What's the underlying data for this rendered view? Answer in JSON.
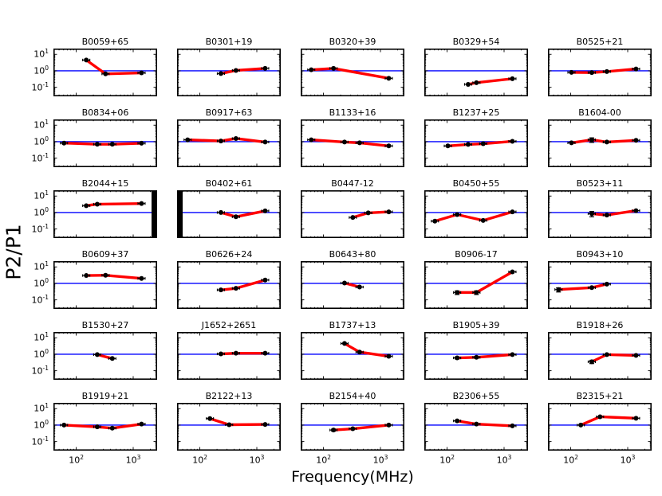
{
  "figure": {
    "title": "",
    "colors": {
      "profile_line": "#ff0000",
      "reference_line": "#0000ff",
      "marker": "#000000",
      "frame": "#000000",
      "background": "#ffffff"
    }
  },
  "chart_data": {
    "type": "line",
    "layout": "6x5 grid of subplots, shared log-log axes",
    "xlabel": "Frequency(MHz)",
    "ylabel": "P2/P1",
    "xscale": "log",
    "yscale": "log",
    "xlim_log10": [
      1.6,
      3.42
    ],
    "ylim_log10": [
      -1.55,
      1.35
    ],
    "xtick_labels": [
      {
        "label": "10^2",
        "value": 100
      },
      {
        "label": "10^3",
        "value": 1000
      }
    ],
    "ytick_labels": [
      {
        "label": "10^1",
        "value": 10
      },
      {
        "label": "10^0",
        "value": 1
      },
      {
        "label": "10^-1",
        "value": 0.1
      }
    ],
    "reference_line_y": 1,
    "grid": false,
    "legend": "none",
    "panels": [
      {
        "title": "B0059+65",
        "points": [
          [
            150,
            4.5,
            0
          ],
          [
            327,
            0.65,
            0
          ],
          [
            1400,
            0.75,
            0
          ]
        ]
      },
      {
        "title": "B0301+19",
        "points": [
          [
            234,
            0.68,
            0
          ],
          [
            430,
            1.05,
            0
          ],
          [
            1400,
            1.4,
            0
          ]
        ]
      },
      {
        "title": "B0320+39",
        "points": [
          [
            61,
            1.15,
            0
          ],
          [
            150,
            1.4,
            0
          ],
          [
            1400,
            0.35,
            0
          ]
        ]
      },
      {
        "title": "B0329+54",
        "points": [
          [
            234,
            0.15,
            0
          ],
          [
            327,
            0.19,
            0
          ],
          [
            1400,
            0.33,
            0
          ]
        ]
      },
      {
        "title": "B0525+21",
        "points": [
          [
            103,
            0.8,
            0
          ],
          [
            234,
            0.78,
            0
          ],
          [
            430,
            0.9,
            0
          ],
          [
            1400,
            1.3,
            0
          ]
        ]
      },
      {
        "title": "B0834+06",
        "points": [
          [
            61,
            0.82,
            0
          ],
          [
            234,
            0.7,
            0
          ],
          [
            430,
            0.7,
            0
          ],
          [
            1400,
            0.8,
            0
          ]
        ]
      },
      {
        "title": "B0917+63",
        "points": [
          [
            61,
            1.3,
            0
          ],
          [
            234,
            1.1,
            0
          ],
          [
            430,
            1.55,
            0
          ],
          [
            1400,
            0.95,
            0
          ]
        ]
      },
      {
        "title": "B1133+16",
        "points": [
          [
            61,
            1.3,
            0
          ],
          [
            234,
            0.95,
            0
          ],
          [
            430,
            0.85,
            0
          ],
          [
            1400,
            0.55,
            0
          ]
        ]
      },
      {
        "title": "B1237+25",
        "points": [
          [
            103,
            0.55,
            0
          ],
          [
            234,
            0.68,
            0
          ],
          [
            430,
            0.75,
            0
          ],
          [
            1400,
            1.05,
            0
          ]
        ]
      },
      {
        "title": "B1604-00",
        "points": [
          [
            103,
            0.85,
            0
          ],
          [
            234,
            1.3,
            0.4
          ],
          [
            430,
            0.95,
            0
          ],
          [
            1400,
            1.2,
            0
          ]
        ]
      },
      {
        "title": "B2044+15",
        "points": [
          [
            150,
            2.6,
            0
          ],
          [
            234,
            3.2,
            0
          ],
          [
            1400,
            3.5,
            0
          ]
        ],
        "bar": "right"
      },
      {
        "title": "B0402+61",
        "points": [
          [
            234,
            1.0,
            0
          ],
          [
            430,
            0.55,
            0
          ],
          [
            1400,
            1.25,
            0
          ]
        ],
        "bar": "left"
      },
      {
        "title": "B0447-12",
        "points": [
          [
            327,
            0.5,
            0
          ],
          [
            610,
            0.95,
            0
          ],
          [
            1400,
            1.1,
            0
          ]
        ]
      },
      {
        "title": "B0450+55",
        "points": [
          [
            61,
            0.3,
            0
          ],
          [
            150,
            0.75,
            0
          ],
          [
            430,
            0.33,
            0
          ],
          [
            1400,
            1.1,
            0
          ]
        ]
      },
      {
        "title": "B0523+11",
        "points": [
          [
            234,
            0.85,
            0.3
          ],
          [
            430,
            0.7,
            0
          ],
          [
            1400,
            1.3,
            0
          ]
        ]
      },
      {
        "title": "B0609+37",
        "points": [
          [
            150,
            3.0,
            0
          ],
          [
            327,
            3.1,
            0
          ],
          [
            1400,
            2.0,
            0
          ]
        ]
      },
      {
        "title": "B0626+24",
        "points": [
          [
            234,
            0.4,
            0
          ],
          [
            430,
            0.5,
            0
          ],
          [
            1400,
            1.6,
            0
          ]
        ]
      },
      {
        "title": "B0643+80",
        "points": [
          [
            234,
            1.05,
            0
          ],
          [
            430,
            0.6,
            0
          ]
        ]
      },
      {
        "title": "B0906-17",
        "points": [
          [
            150,
            0.28,
            0.07
          ],
          [
            327,
            0.28,
            0.07
          ],
          [
            1400,
            5.0,
            0
          ]
        ]
      },
      {
        "title": "B0943+10",
        "points": [
          [
            61,
            0.42,
            0.12
          ],
          [
            234,
            0.55,
            0
          ],
          [
            430,
            0.9,
            0
          ]
        ]
      },
      {
        "title": "B1530+27",
        "points": [
          [
            234,
            0.95,
            0
          ],
          [
            430,
            0.55,
            0
          ]
        ]
      },
      {
        "title": "J1652+2651",
        "points": [
          [
            234,
            1.05,
            0
          ],
          [
            430,
            1.15,
            0
          ],
          [
            1400,
            1.15,
            0
          ]
        ]
      },
      {
        "title": "B1737+13",
        "points": [
          [
            234,
            4.5,
            0
          ],
          [
            430,
            1.35,
            0
          ],
          [
            1400,
            0.75,
            0
          ]
        ]
      },
      {
        "title": "B1905+39",
        "points": [
          [
            150,
            0.6,
            0.08
          ],
          [
            327,
            0.65,
            0.08
          ],
          [
            1400,
            0.95,
            0
          ]
        ]
      },
      {
        "title": "B1918+26",
        "points": [
          [
            234,
            0.35,
            0.08
          ],
          [
            430,
            0.95,
            0
          ],
          [
            1400,
            0.85,
            0
          ]
        ]
      },
      {
        "title": "B1919+21",
        "points": [
          [
            61,
            1.0,
            0
          ],
          [
            234,
            0.78,
            0
          ],
          [
            430,
            0.65,
            0
          ],
          [
            1400,
            1.15,
            0
          ]
        ]
      },
      {
        "title": "B2122+13",
        "points": [
          [
            150,
            2.5,
            0
          ],
          [
            327,
            1.05,
            0
          ],
          [
            1400,
            1.1,
            0
          ]
        ]
      },
      {
        "title": "B2154+40",
        "points": [
          [
            150,
            0.5,
            0.07
          ],
          [
            327,
            0.6,
            0
          ],
          [
            1400,
            1.0,
            0
          ]
        ]
      },
      {
        "title": "B2306+55",
        "points": [
          [
            150,
            1.8,
            0
          ],
          [
            327,
            1.15,
            0
          ],
          [
            1400,
            0.9,
            0
          ]
        ]
      },
      {
        "title": "B2315+21",
        "points": [
          [
            150,
            1.0,
            0
          ],
          [
            327,
            3.2,
            0
          ],
          [
            1400,
            2.6,
            0
          ]
        ]
      }
    ]
  }
}
